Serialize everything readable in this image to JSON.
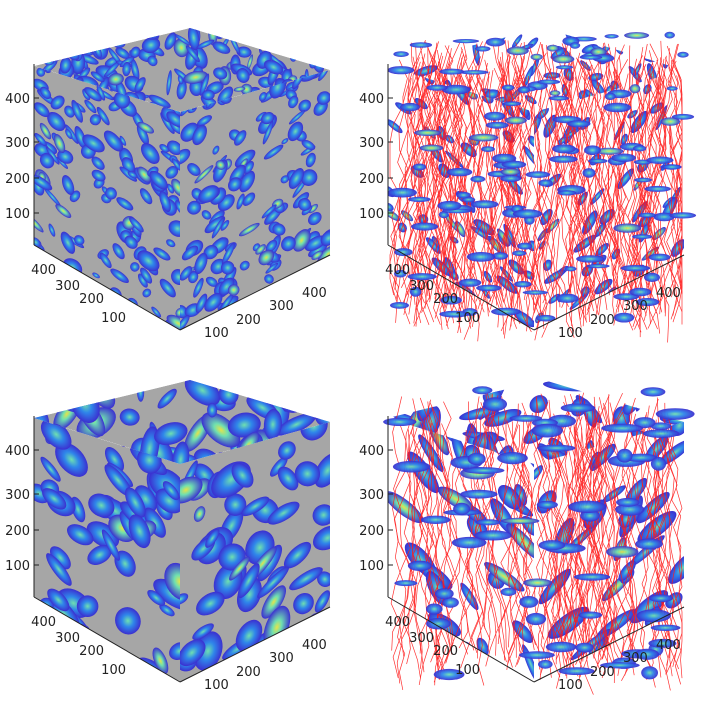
{
  "panels": [
    {
      "id": "top-left",
      "view": "solid",
      "zoom": "fine",
      "ticks": {
        "z": [
          "100",
          "200",
          "300",
          "400"
        ],
        "left": [
          "100",
          "200",
          "300",
          "400"
        ],
        "right": [
          "100",
          "200",
          "300",
          "400"
        ]
      }
    },
    {
      "id": "top-right",
      "view": "streamlines",
      "zoom": "fine",
      "ticks": {
        "z": [
          "100",
          "200",
          "300",
          "400"
        ],
        "left": [
          "100",
          "200",
          "300",
          "400"
        ],
        "right": [
          "100",
          "200",
          "300",
          "400"
        ]
      }
    },
    {
      "id": "bottom-left",
      "view": "solid",
      "zoom": "coarse",
      "ticks": {
        "z": [
          "100",
          "200",
          "300",
          "400"
        ],
        "left": [
          "100",
          "200",
          "300",
          "400"
        ],
        "right": [
          "100",
          "200",
          "300",
          "400"
        ]
      }
    },
    {
      "id": "bottom-right",
      "view": "streamlines",
      "zoom": "coarse",
      "ticks": {
        "z": [
          "100",
          "200",
          "300",
          "400"
        ],
        "left": [
          "100",
          "200",
          "300",
          "400"
        ],
        "right": [
          "100",
          "200",
          "300",
          "400"
        ]
      }
    }
  ],
  "colors": {
    "grain": "#a6a6a6",
    "pore_low": "#3b2fd0",
    "pore_mid": "#2f86ea",
    "pore_high": "#6fe0b0",
    "pore_peak": "#e6e34a",
    "streamline": "#ff1a1a",
    "axis": "#222222"
  }
}
